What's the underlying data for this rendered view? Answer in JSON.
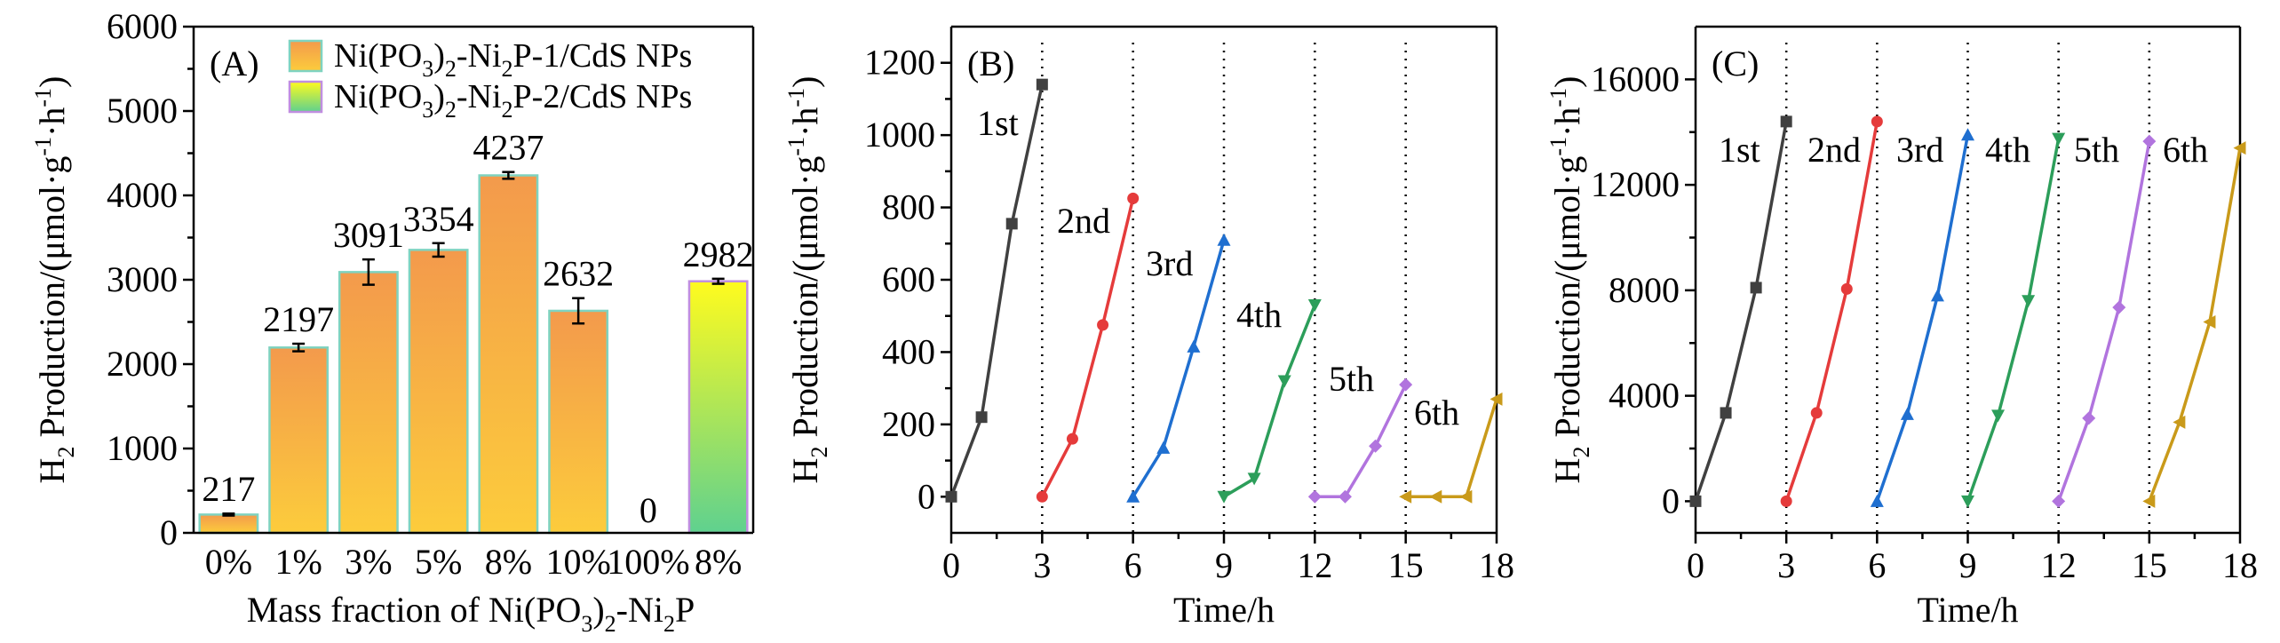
{
  "colors": {
    "bar1_top": "#f39a4c",
    "bar1_bottom": "#fccc3c",
    "bar1_edge": "#7fd3c0",
    "bar2_top": "#fffb1e",
    "bar2_bottom": "#5fd18f",
    "bar2_edge": "#c08ee0",
    "series": [
      "#404040",
      "#e53b3b",
      "#1f6fd0",
      "#2c9e5a",
      "#b174de",
      "#c99a1a"
    ]
  },
  "chart_data": [
    {
      "type": "bar",
      "panel": "(A)",
      "categories": [
        "0%",
        "1%",
        "3%",
        "5%",
        "8%",
        "10%",
        "100%",
        "8%"
      ],
      "values": [
        217,
        2197,
        3091,
        3354,
        4237,
        2632,
        0,
        2982
      ],
      "errors": [
        12,
        45,
        150,
        80,
        40,
        150,
        0,
        30
      ],
      "value_labels": [
        "217",
        "2197",
        "3091",
        "3354",
        "4237",
        "2632",
        "0",
        "2982"
      ],
      "series_index": [
        0,
        0,
        0,
        0,
        0,
        0,
        0,
        1
      ],
      "legend": [
        "Ni(PO3)2-Ni2P-1/CdS NPs",
        "Ni(PO3)2-Ni2P-2/CdS NPs"
      ],
      "legend_position": "top",
      "xlabel": "Mass fraction of Ni(PO3)2-Ni2P",
      "ylabel": "H2 Production/(μmol·g-1·h-1)",
      "ylim": [
        0,
        6000
      ],
      "yticks": [
        0,
        1000,
        2000,
        3000,
        4000,
        5000,
        6000
      ]
    },
    {
      "type": "line",
      "panel": "(B)",
      "xlabel": "Time/h",
      "ylabel": "H2 Production/(μmol·g-1·h-1)",
      "xlim": [
        0,
        18
      ],
      "ylim": [
        -100,
        1300
      ],
      "xticks": [
        0,
        3,
        6,
        9,
        12,
        15,
        18
      ],
      "yticks": [
        0,
        200,
        400,
        600,
        800,
        1000,
        1200
      ],
      "cycle_boundaries": [
        3,
        6,
        9,
        12,
        15
      ],
      "series": [
        {
          "label": "1st",
          "marker": "square",
          "x": [
            0,
            1,
            2,
            3
          ],
          "y": [
            0,
            220,
            755,
            1140
          ]
        },
        {
          "label": "2nd",
          "marker": "circle",
          "x": [
            3,
            4,
            5,
            6
          ],
          "y": [
            0,
            160,
            475,
            825
          ]
        },
        {
          "label": "3rd",
          "marker": "triangle-up",
          "x": [
            6,
            7,
            8,
            9
          ],
          "y": [
            0,
            135,
            415,
            710
          ]
        },
        {
          "label": "4th",
          "marker": "triangle-down",
          "x": [
            9,
            10,
            11,
            12
          ],
          "y": [
            0,
            50,
            320,
            530
          ]
        },
        {
          "label": "5th",
          "marker": "diamond",
          "x": [
            12,
            13,
            14,
            15
          ],
          "y": [
            0,
            0,
            140,
            310
          ]
        },
        {
          "label": "6th",
          "marker": "triangle-left",
          "x": [
            15,
            16,
            17,
            18
          ],
          "y": [
            0,
            0,
            0,
            270
          ]
        }
      ]
    },
    {
      "type": "line",
      "panel": "(C)",
      "xlabel": "Time/h",
      "ylabel": "H2 Production/(μmol·g-1·h-1)",
      "xlim": [
        0,
        18
      ],
      "ylim": [
        -1200,
        18000
      ],
      "xticks": [
        0,
        3,
        6,
        9,
        12,
        15,
        18
      ],
      "yticks": [
        0,
        4000,
        8000,
        12000,
        16000
      ],
      "cycle_boundaries": [
        3,
        6,
        9,
        12,
        15
      ],
      "series": [
        {
          "label": "1st",
          "marker": "square",
          "x": [
            0,
            1,
            2,
            3
          ],
          "y": [
            0,
            3350,
            8100,
            14400
          ]
        },
        {
          "label": "2nd",
          "marker": "circle",
          "x": [
            3,
            4,
            5,
            6
          ],
          "y": [
            0,
            3350,
            8050,
            14400
          ]
        },
        {
          "label": "3rd",
          "marker": "triangle-up",
          "x": [
            6,
            7,
            8,
            9
          ],
          "y": [
            0,
            3300,
            7800,
            13900
          ]
        },
        {
          "label": "4th",
          "marker": "triangle-down",
          "x": [
            9,
            10,
            11,
            12
          ],
          "y": [
            0,
            3250,
            7600,
            13750
          ]
        },
        {
          "label": "5th",
          "marker": "diamond",
          "x": [
            12,
            13,
            14,
            15
          ],
          "y": [
            0,
            3150,
            7350,
            13650
          ]
        },
        {
          "label": "6th",
          "marker": "triangle-left",
          "x": [
            15,
            16,
            17,
            18
          ],
          "y": [
            0,
            3000,
            6800,
            13400
          ]
        }
      ]
    }
  ]
}
